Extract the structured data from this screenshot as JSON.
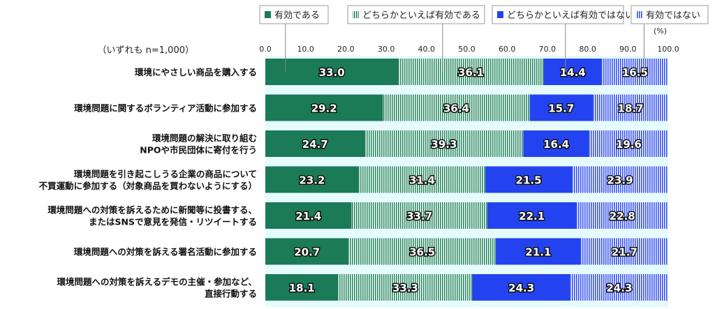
{
  "chart_data": {
    "type": "bar",
    "stacked": true,
    "orientation": "horizontal",
    "note": "（いずれも n=1,000）",
    "unit": "(%)",
    "xlim": [
      0,
      100
    ],
    "ticks": [
      "0.0",
      "10.0",
      "20.0",
      "30.0",
      "40.0",
      "50.0",
      "60.0",
      "70.0",
      "80.0",
      "90.0",
      "100.0"
    ],
    "legend_position": "top",
    "categories": [
      [
        "環境にやさしい商品を購入する"
      ],
      [
        "環境問題に関するボランティア活動に参加する"
      ],
      [
        "環境問題の解決に取り組む",
        "NPOや市民団体に寄付を行う"
      ],
      [
        "環境問題を引き起こしうる企業の商品について",
        "不買運動に参加する（対象商品を買わないようにする）"
      ],
      [
        "環境問題への対策を訴えるために新聞等に投書する、",
        "またはSNSで意見を発信・リツイートする"
      ],
      [
        "環境問題への対策を訴える署名活動に参加する"
      ],
      [
        "環境問題への対策を訴えるデモの主催・参加など、",
        "直接行動する"
      ]
    ],
    "series": [
      {
        "name": "有効である",
        "color": "#1b7a58",
        "pattern": "solid",
        "values": [
          33.0,
          29.2,
          24.7,
          23.2,
          21.4,
          20.7,
          18.1
        ]
      },
      {
        "name": "どちらかといえば有効である",
        "color": "#2a8a64",
        "pattern": "stripes",
        "values": [
          36.1,
          36.4,
          39.3,
          31.4,
          33.7,
          36.5,
          33.3
        ]
      },
      {
        "name": "どちらかといえば有効ではない",
        "color": "#2443f0",
        "pattern": "solid",
        "values": [
          14.4,
          15.7,
          16.4,
          21.5,
          22.1,
          21.1,
          24.3
        ]
      },
      {
        "name": "有効ではない",
        "color": "#3350f0",
        "pattern": "stripes",
        "values": [
          16.5,
          18.7,
          19.6,
          23.9,
          22.8,
          21.7,
          24.3
        ]
      }
    ]
  }
}
